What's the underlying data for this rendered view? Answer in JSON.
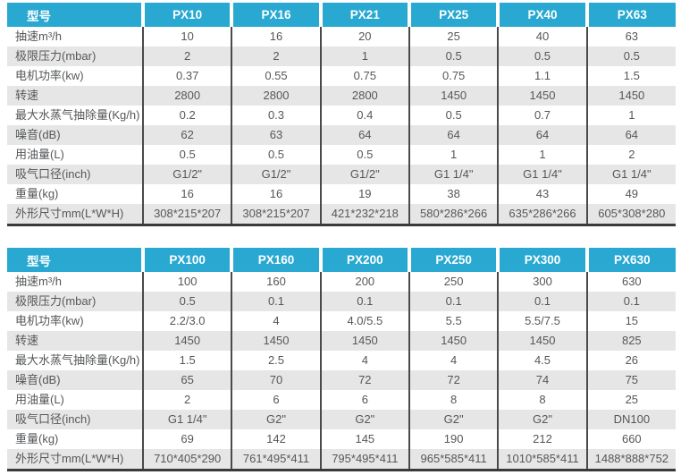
{
  "colors": {
    "header_accent": "#29a8d2",
    "header_text": "#ffffff",
    "row_stripe": "#e6e6e6",
    "body_text": "#55575a",
    "column_divider": "#4a4a4a",
    "table_bottom_border": "#3a3a3a"
  },
  "tables": [
    {
      "id": "px-small-series",
      "header": [
        "型号",
        "PX10",
        "PX16",
        "PX21",
        "PX25",
        "PX40",
        "PX63"
      ],
      "rows": [
        {
          "label": "抽速m³/h",
          "values": [
            "10",
            "16",
            "20",
            "25",
            "40",
            "63"
          ]
        },
        {
          "label": "极限压力(mbar)",
          "values": [
            "2",
            "2",
            "1",
            "0.5",
            "0.5",
            "0.5"
          ]
        },
        {
          "label": "电机功率(kw)",
          "values": [
            "0.37",
            "0.55",
            "0.75",
            "0.75",
            "1.1",
            "1.5"
          ]
        },
        {
          "label": "转速",
          "values": [
            "2800",
            "2800",
            "2800",
            "1450",
            "1450",
            "1450"
          ]
        },
        {
          "label": "最大水蒸气抽除量(Kg/h)",
          "values": [
            "0.2",
            "0.3",
            "0.4",
            "0.5",
            "0.7",
            "1"
          ]
        },
        {
          "label": "噪音(dB)",
          "values": [
            "62",
            "63",
            "64",
            "64",
            "64",
            "64"
          ]
        },
        {
          "label": "用油量(L)",
          "values": [
            "0.5",
            "0.5",
            "0.5",
            "1",
            "1",
            "2"
          ]
        },
        {
          "label": "吸气口径(inch)",
          "values": [
            "G1/2\"",
            "G1/2\"",
            "G1/2\"",
            "G1 1/4\"",
            "G1 1/4\"",
            "G1 1/4\""
          ]
        },
        {
          "label": "重量(kg)",
          "values": [
            "16",
            "16",
            "19",
            "38",
            "43",
            "49"
          ]
        },
        {
          "label": "外形尺寸mm(L*W*H)",
          "values": [
            "308*215*207",
            "308*215*207",
            "421*232*218",
            "580*286*266",
            "635*286*266",
            "605*308*280"
          ]
        }
      ]
    },
    {
      "id": "px-large-series",
      "header": [
        "型号",
        "PX100",
        "PX160",
        "PX200",
        "PX250",
        "PX300",
        "PX630"
      ],
      "rows": [
        {
          "label": "抽速m³/h",
          "values": [
            "100",
            "160",
            "200",
            "250",
            "300",
            "630"
          ]
        },
        {
          "label": "极限压力(mbar)",
          "values": [
            "0.5",
            "0.1",
            "0.1",
            "0.1",
            "0.1",
            "0.1"
          ]
        },
        {
          "label": "电机功率(kw)",
          "values": [
            "2.2/3.0",
            "4",
            "4.0/5.5",
            "5.5",
            "5.5/7.5",
            "15"
          ]
        },
        {
          "label": "转速",
          "values": [
            "1450",
            "1450",
            "1450",
            "1450",
            "1450",
            "825"
          ]
        },
        {
          "label": "最大水蒸气抽除量(Kg/h)",
          "values": [
            "1.5",
            "2.5",
            "4",
            "4",
            "4.5",
            "26"
          ]
        },
        {
          "label": "噪音(dB)",
          "values": [
            "65",
            "70",
            "72",
            "72",
            "74",
            "75"
          ]
        },
        {
          "label": "用油量(L)",
          "values": [
            "2",
            "6",
            "6",
            "8",
            "8",
            "25"
          ]
        },
        {
          "label": "吸气口径(inch)",
          "values": [
            "G1 1/4\"",
            "G2\"",
            "G2\"",
            "G2\"",
            "G2\"",
            "DN100"
          ]
        },
        {
          "label": "重量(kg)",
          "values": [
            "69",
            "142",
            "145",
            "190",
            "212",
            "660"
          ]
        },
        {
          "label": "外形尺寸mm(L*W*H)",
          "values": [
            "710*405*290",
            "761*495*411",
            "795*495*411",
            "965*585*411",
            "1010*585*411",
            "1488*888*752"
          ]
        }
      ]
    }
  ]
}
